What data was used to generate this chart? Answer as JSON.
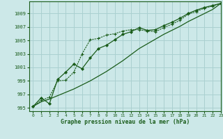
{
  "title": "Graphe pression niveau de la mer (hPa)",
  "bg_color": "#cce8e8",
  "grid_color": "#aad0d0",
  "line_color": "#1a5c1a",
  "xlim": [
    -0.5,
    23
  ],
  "ylim": [
    994.5,
    1010.8
  ],
  "yticks": [
    995,
    997,
    999,
    1001,
    1003,
    1005,
    1007,
    1009
  ],
  "xticks": [
    0,
    1,
    2,
    3,
    4,
    5,
    6,
    7,
    8,
    9,
    10,
    11,
    12,
    13,
    14,
    15,
    16,
    17,
    18,
    19,
    20,
    21,
    22,
    23
  ],
  "series1": [
    995.2,
    996.1,
    996.6,
    999.0,
    999.1,
    1000.3,
    1003.0,
    1005.1,
    1005.3,
    1005.8,
    1006.0,
    1006.4,
    1006.6,
    1006.6,
    1006.4,
    1006.3,
    1006.9,
    1007.4,
    1008.0,
    1008.9,
    1009.3,
    1009.8,
    1010.1,
    1010.5
  ],
  "series2": [
    995.2,
    996.5,
    995.6,
    999.2,
    1000.3,
    1001.5,
    1000.8,
    1002.4,
    1003.8,
    1004.3,
    1005.1,
    1005.9,
    1006.3,
    1006.9,
    1006.5,
    1006.6,
    1007.2,
    1007.7,
    1008.3,
    1009.0,
    1009.5,
    1009.9,
    1010.2,
    1010.5
  ],
  "series3": [
    995.2,
    995.9,
    996.3,
    996.8,
    997.3,
    997.8,
    998.4,
    999.0,
    999.7,
    1000.4,
    1001.2,
    1002.0,
    1002.9,
    1003.8,
    1004.5,
    1005.2,
    1005.9,
    1006.5,
    1007.1,
    1007.8,
    1008.4,
    1009.0,
    1009.6,
    1010.5
  ]
}
